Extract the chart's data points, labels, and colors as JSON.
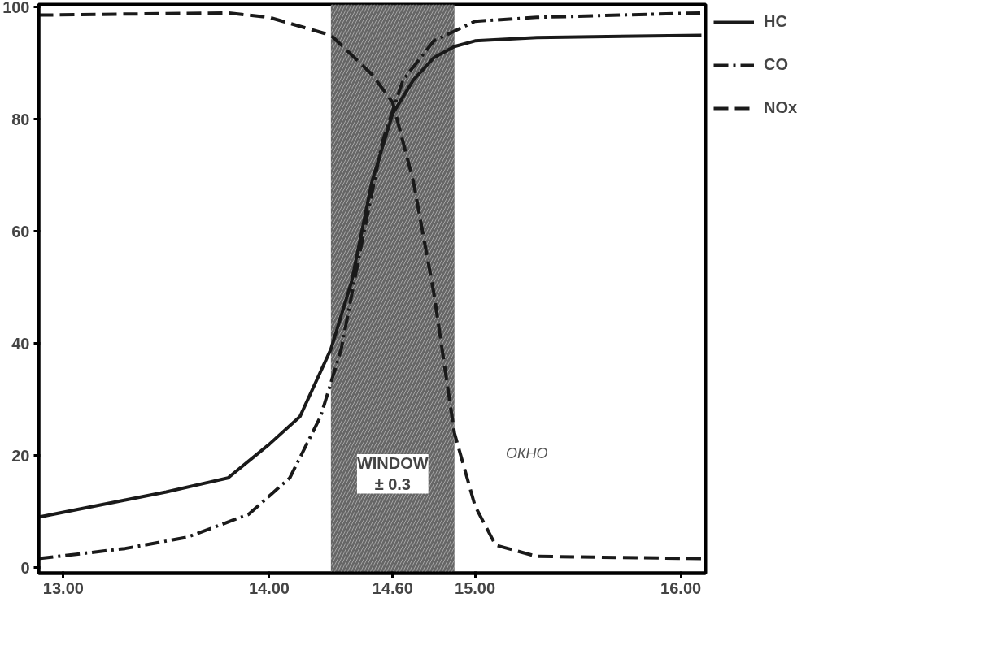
{
  "chart_data": {
    "type": "line",
    "xlim": [
      12.88,
      16.12
    ],
    "ylim": [
      -1,
      100.5
    ],
    "xticks": [
      {
        "value": 13,
        "label": "13.00"
      },
      {
        "value": 14,
        "label": "14.00"
      },
      {
        "value": 14.6,
        "label": "14.60"
      },
      {
        "value": 15,
        "label": "15.00"
      },
      {
        "value": 16,
        "label": "16.00"
      }
    ],
    "yticks": [
      0,
      20,
      40,
      60,
      80,
      100
    ],
    "grid": false,
    "legend": "top right",
    "marker": "none",
    "series": [
      {
        "name": "HC",
        "color": "#1a1a1a",
        "line_style": "solid",
        "x": [
          12.88,
          13.5,
          13.8,
          14.0,
          14.15,
          14.3,
          14.4,
          14.5,
          14.6,
          14.7,
          14.8,
          14.9,
          15.0,
          15.3,
          16.1
        ],
        "values": [
          9,
          13.5,
          16,
          22,
          27,
          39,
          51,
          69,
          81,
          87,
          91,
          93,
          94,
          94.6,
          95
        ]
      },
      {
        "name": "CO",
        "color": "#1a1a1a",
        "line_style": "dashdot",
        "x": [
          12.88,
          13.3,
          13.6,
          13.9,
          14.1,
          14.25,
          14.35,
          14.45,
          14.55,
          14.65,
          14.8,
          15.0,
          15.3,
          16.1
        ],
        "values": [
          1.6,
          3.4,
          5.4,
          9.5,
          16,
          27,
          39,
          58,
          76,
          87,
          94,
          97.5,
          98.2,
          99
        ]
      },
      {
        "name": "NOx",
        "color": "#1a1a1a",
        "line_style": "dashed",
        "x": [
          12.88,
          13.8,
          14.0,
          14.3,
          14.5,
          14.6,
          14.7,
          14.8,
          14.9,
          15.0,
          15.1,
          15.3,
          16.1
        ],
        "values": [
          98.6,
          99,
          98.2,
          95,
          88,
          83,
          69,
          49,
          24,
          11,
          4,
          2,
          1.6
        ]
      }
    ],
    "bands": [
      {
        "axis": "x",
        "from": 14.3,
        "to": 14.9,
        "label": "WINDOW\n± 0.3",
        "color": "#555555"
      }
    ],
    "annotations": [
      "ОКНО"
    ]
  }
}
